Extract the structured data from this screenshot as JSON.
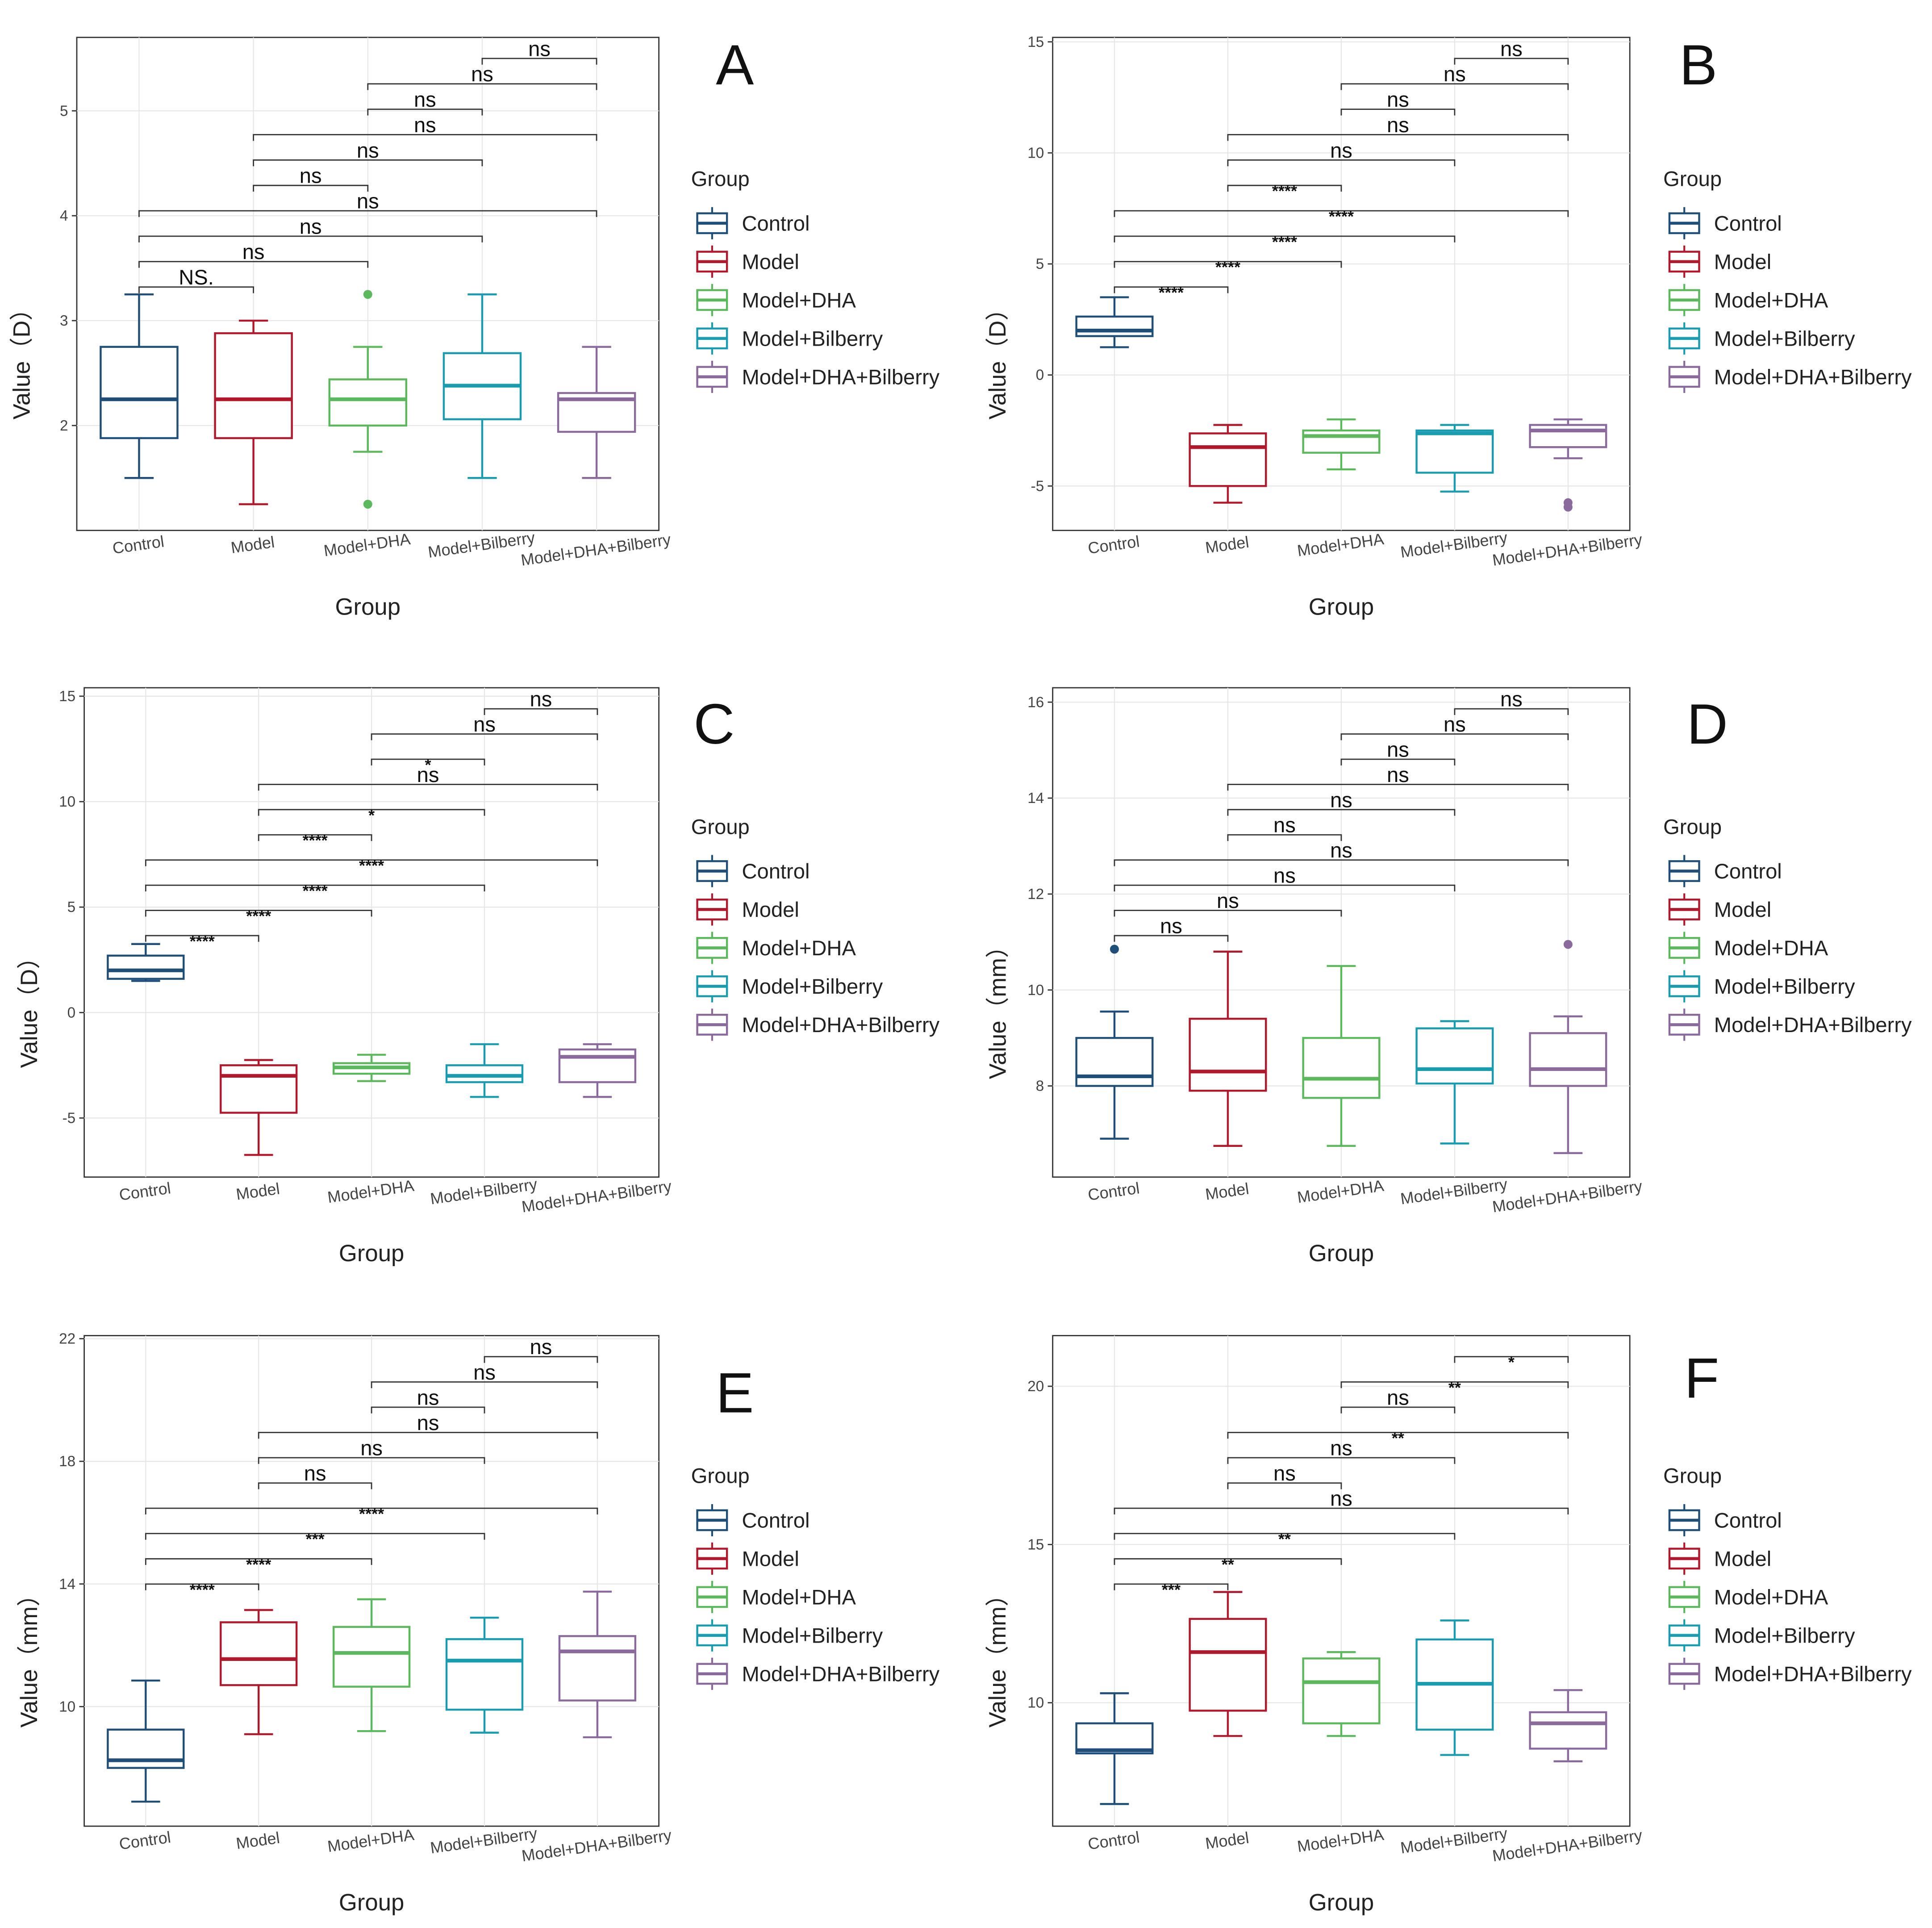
{
  "figure": {
    "x_title": "Group",
    "legend_title": "Group",
    "groups": [
      "Control",
      "Model",
      "Model+DHA",
      "Model+Bilberry",
      "Model+DHA+Bilberry"
    ],
    "colors": [
      "#1f4e79",
      "#b2182b",
      "#5cb85c",
      "#1a9cb0",
      "#8a6a9c"
    ]
  },
  "chart_data": [
    {
      "type": "box",
      "panel": "A",
      "ylabel": "Value（D）",
      "ylim": [
        1.0,
        5.7
      ],
      "yticks": [
        2,
        3,
        4,
        5
      ],
      "boxes": [
        {
          "min": 1.5,
          "q1": 1.88,
          "median": 2.25,
          "q3": 2.75,
          "max": 3.25,
          "outliers": []
        },
        {
          "min": 1.25,
          "q1": 1.88,
          "median": 2.25,
          "q3": 2.88,
          "max": 3.0,
          "outliers": []
        },
        {
          "min": 1.75,
          "q1": 2.0,
          "median": 2.25,
          "q3": 2.44,
          "max": 2.75,
          "outliers": [
            3.25,
            1.25
          ]
        },
        {
          "min": 1.5,
          "q1": 2.06,
          "median": 2.38,
          "q3": 2.69,
          "max": 3.25,
          "outliers": []
        },
        {
          "min": 1.5,
          "q1": 1.94,
          "median": 2.25,
          "q3": 2.31,
          "max": 2.75,
          "outliers": []
        }
      ],
      "comparisons": [
        {
          "pair": [
            0,
            1
          ],
          "label": "NS."
        },
        {
          "pair": [
            0,
            2
          ],
          "label": "ns"
        },
        {
          "pair": [
            0,
            3
          ],
          "label": "ns"
        },
        {
          "pair": [
            0,
            4
          ],
          "label": "ns"
        },
        {
          "pair": [
            1,
            2
          ],
          "label": "ns"
        },
        {
          "pair": [
            1,
            3
          ],
          "label": "ns"
        },
        {
          "pair": [
            1,
            4
          ],
          "label": "ns"
        },
        {
          "pair": [
            2,
            3
          ],
          "label": "ns"
        },
        {
          "pair": [
            2,
            4
          ],
          "label": "ns"
        },
        {
          "pair": [
            3,
            4
          ],
          "label": "ns"
        }
      ]
    },
    {
      "type": "box",
      "panel": "B",
      "ylabel": "Value（D）",
      "ylim": [
        -7.0,
        15.2
      ],
      "yticks": [
        -5,
        0,
        5,
        10,
        15
      ],
      "boxes": [
        {
          "min": 1.25,
          "q1": 1.75,
          "median": 2.0,
          "q3": 2.63,
          "max": 3.5,
          "outliers": []
        },
        {
          "min": -5.75,
          "q1": -5.0,
          "median": -3.25,
          "q3": -2.63,
          "max": -2.25,
          "outliers": []
        },
        {
          "min": -4.25,
          "q1": -3.5,
          "median": -2.75,
          "q3": -2.5,
          "max": -2.0,
          "outliers": []
        },
        {
          "min": -5.25,
          "q1": -4.4,
          "median": -2.63,
          "q3": -2.5,
          "max": -2.25,
          "outliers": []
        },
        {
          "min": -3.75,
          "q1": -3.25,
          "median": -2.5,
          "q3": -2.25,
          "max": -2.0,
          "outliers": [
            -5.75,
            -5.95
          ]
        }
      ],
      "comparisons": [
        {
          "pair": [
            0,
            1
          ],
          "label": "****"
        },
        {
          "pair": [
            0,
            2
          ],
          "label": "****"
        },
        {
          "pair": [
            0,
            3
          ],
          "label": "****"
        },
        {
          "pair": [
            0,
            4
          ],
          "label": "****"
        },
        {
          "pair": [
            1,
            2
          ],
          "label": "****"
        },
        {
          "pair": [
            1,
            3
          ],
          "label": "ns"
        },
        {
          "pair": [
            1,
            4
          ],
          "label": "ns"
        },
        {
          "pair": [
            2,
            3
          ],
          "label": "ns"
        },
        {
          "pair": [
            2,
            4
          ],
          "label": "ns"
        },
        {
          "pair": [
            3,
            4
          ],
          "label": "ns"
        }
      ]
    },
    {
      "type": "box",
      "panel": "C",
      "ylabel": "Value（D）",
      "ylim": [
        -7.8,
        15.4
      ],
      "yticks": [
        -5,
        0,
        5,
        10,
        15
      ],
      "boxes": [
        {
          "min": 1.5,
          "q1": 1.6,
          "median": 2.0,
          "q3": 2.7,
          "max": 3.25,
          "outliers": []
        },
        {
          "min": -6.75,
          "q1": -4.75,
          "median": -3.0,
          "q3": -2.5,
          "max": -2.25,
          "outliers": []
        },
        {
          "min": -3.25,
          "q1": -2.9,
          "median": -2.6,
          "q3": -2.4,
          "max": -2.0,
          "outliers": []
        },
        {
          "min": -4.0,
          "q1": -3.3,
          "median": -3.0,
          "q3": -2.5,
          "max": -1.5,
          "outliers": []
        },
        {
          "min": -4.0,
          "q1": -3.3,
          "median": -2.1,
          "q3": -1.75,
          "max": -1.5,
          "outliers": []
        }
      ],
      "comparisons": [
        {
          "pair": [
            0,
            1
          ],
          "label": "****"
        },
        {
          "pair": [
            0,
            2
          ],
          "label": "****"
        },
        {
          "pair": [
            0,
            3
          ],
          "label": "****"
        },
        {
          "pair": [
            0,
            4
          ],
          "label": "****"
        },
        {
          "pair": [
            1,
            2
          ],
          "label": "****"
        },
        {
          "pair": [
            1,
            3
          ],
          "label": "*"
        },
        {
          "pair": [
            1,
            4
          ],
          "label": "ns"
        },
        {
          "pair": [
            2,
            3
          ],
          "label": "*"
        },
        {
          "pair": [
            2,
            4
          ],
          "label": "ns"
        },
        {
          "pair": [
            3,
            4
          ],
          "label": "ns"
        }
      ]
    },
    {
      "type": "box",
      "panel": "D",
      "ylabel": "Value（mm）",
      "ylim": [
        6.1,
        16.3
      ],
      "yticks": [
        8,
        10,
        12,
        14,
        16
      ],
      "boxes": [
        {
          "min": 6.9,
          "q1": 8.0,
          "median": 8.2,
          "q3": 9.0,
          "max": 9.55,
          "outliers": [
            10.85
          ]
        },
        {
          "min": 6.75,
          "q1": 7.9,
          "median": 8.3,
          "q3": 9.4,
          "max": 10.8,
          "outliers": []
        },
        {
          "min": 6.75,
          "q1": 7.75,
          "median": 8.15,
          "q3": 9.0,
          "max": 10.5,
          "outliers": []
        },
        {
          "min": 6.8,
          "q1": 8.05,
          "median": 8.35,
          "q3": 9.2,
          "max": 9.35,
          "outliers": []
        },
        {
          "min": 6.6,
          "q1": 8.0,
          "median": 8.35,
          "q3": 9.1,
          "max": 9.45,
          "outliers": [
            10.95
          ]
        }
      ],
      "comparisons": [
        {
          "pair": [
            0,
            1
          ],
          "label": "ns"
        },
        {
          "pair": [
            0,
            2
          ],
          "label": "ns"
        },
        {
          "pair": [
            0,
            3
          ],
          "label": "ns"
        },
        {
          "pair": [
            0,
            4
          ],
          "label": "ns"
        },
        {
          "pair": [
            1,
            2
          ],
          "label": "ns"
        },
        {
          "pair": [
            1,
            3
          ],
          "label": "ns"
        },
        {
          "pair": [
            1,
            4
          ],
          "label": "ns"
        },
        {
          "pair": [
            2,
            3
          ],
          "label": "ns"
        },
        {
          "pair": [
            2,
            4
          ],
          "label": "ns"
        },
        {
          "pair": [
            3,
            4
          ],
          "label": "ns"
        }
      ]
    },
    {
      "type": "box",
      "panel": "E",
      "ylabel": "Value（mm）",
      "ylim": [
        6.1,
        22.1
      ],
      "yticks": [
        10,
        14,
        18,
        22
      ],
      "boxes": [
        {
          "min": 6.9,
          "q1": 8.0,
          "median": 8.25,
          "q3": 9.25,
          "max": 10.85,
          "outliers": []
        },
        {
          "min": 9.1,
          "q1": 10.7,
          "median": 11.55,
          "q3": 12.75,
          "max": 13.15,
          "outliers": []
        },
        {
          "min": 9.2,
          "q1": 10.65,
          "median": 11.75,
          "q3": 12.6,
          "max": 13.5,
          "outliers": []
        },
        {
          "min": 9.15,
          "q1": 9.9,
          "median": 11.5,
          "q3": 12.2,
          "max": 12.9,
          "outliers": []
        },
        {
          "min": 9.0,
          "q1": 10.2,
          "median": 11.8,
          "q3": 12.3,
          "max": 13.75,
          "outliers": []
        }
      ],
      "comparisons": [
        {
          "pair": [
            0,
            1
          ],
          "label": "****"
        },
        {
          "pair": [
            0,
            2
          ],
          "label": "****"
        },
        {
          "pair": [
            0,
            3
          ],
          "label": "***"
        },
        {
          "pair": [
            0,
            4
          ],
          "label": "****"
        },
        {
          "pair": [
            1,
            2
          ],
          "label": "ns"
        },
        {
          "pair": [
            1,
            3
          ],
          "label": "ns"
        },
        {
          "pair": [
            1,
            4
          ],
          "label": "ns"
        },
        {
          "pair": [
            2,
            3
          ],
          "label": "ns"
        },
        {
          "pair": [
            2,
            4
          ],
          "label": "ns"
        },
        {
          "pair": [
            3,
            4
          ],
          "label": "ns"
        }
      ]
    },
    {
      "type": "box",
      "panel": "F",
      "ylabel": "Value（mm）",
      "ylim": [
        6.1,
        21.6
      ],
      "yticks": [
        10,
        15,
        20
      ],
      "boxes": [
        {
          "min": 6.8,
          "q1": 8.4,
          "median": 8.5,
          "q3": 9.35,
          "max": 10.3,
          "outliers": []
        },
        {
          "min": 8.95,
          "q1": 9.75,
          "median": 11.6,
          "q3": 12.65,
          "max": 13.5,
          "outliers": []
        },
        {
          "min": 8.95,
          "q1": 9.35,
          "median": 10.65,
          "q3": 11.4,
          "max": 11.6,
          "outliers": []
        },
        {
          "min": 8.35,
          "q1": 9.15,
          "median": 10.6,
          "q3": 12.0,
          "max": 12.6,
          "outliers": []
        },
        {
          "min": 8.15,
          "q1": 8.55,
          "median": 9.35,
          "q3": 9.7,
          "max": 10.4,
          "outliers": []
        }
      ],
      "comparisons": [
        {
          "pair": [
            0,
            1
          ],
          "label": "***"
        },
        {
          "pair": [
            0,
            2
          ],
          "label": "**"
        },
        {
          "pair": [
            0,
            3
          ],
          "label": "**"
        },
        {
          "pair": [
            0,
            4
          ],
          "label": "ns"
        },
        {
          "pair": [
            1,
            2
          ],
          "label": "ns"
        },
        {
          "pair": [
            1,
            3
          ],
          "label": "ns"
        },
        {
          "pair": [
            1,
            4
          ],
          "label": "**"
        },
        {
          "pair": [
            2,
            3
          ],
          "label": "ns"
        },
        {
          "pair": [
            2,
            4
          ],
          "label": "**"
        },
        {
          "pair": [
            3,
            4
          ],
          "label": "*"
        }
      ]
    }
  ]
}
